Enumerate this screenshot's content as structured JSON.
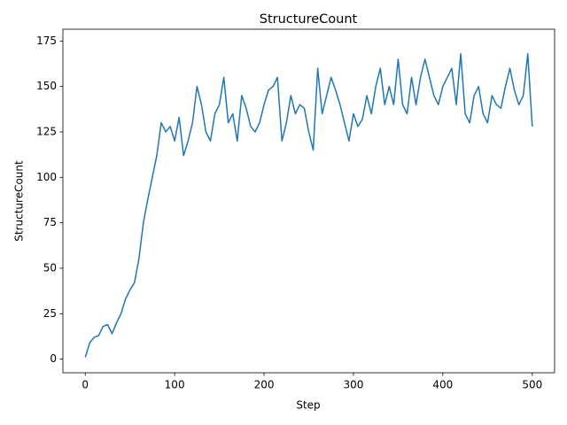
{
  "chart_data": {
    "type": "line",
    "title": "StructureCount",
    "xlabel": "Step",
    "ylabel": "StructureCount",
    "x": [
      0,
      5,
      10,
      15,
      20,
      25,
      30,
      35,
      40,
      45,
      50,
      55,
      60,
      65,
      70,
      75,
      80,
      85,
      90,
      95,
      100,
      105,
      110,
      115,
      120,
      125,
      130,
      135,
      140,
      145,
      150,
      155,
      160,
      165,
      170,
      175,
      180,
      185,
      190,
      195,
      200,
      205,
      210,
      215,
      220,
      225,
      230,
      235,
      240,
      245,
      250,
      255,
      260,
      265,
      270,
      275,
      280,
      285,
      290,
      295,
      300,
      305,
      310,
      315,
      320,
      325,
      330,
      335,
      340,
      345,
      350,
      355,
      360,
      365,
      370,
      375,
      380,
      385,
      390,
      395,
      400,
      405,
      410,
      415,
      420,
      425,
      430,
      435,
      440,
      445,
      450,
      455,
      460,
      465,
      470,
      475,
      480,
      485,
      490,
      495,
      500
    ],
    "series": [
      {
        "name": "StructureCount",
        "color": "#1f77b4",
        "values": [
          1,
          9,
          12,
          13,
          18,
          19,
          14,
          20,
          25,
          33,
          38,
          42,
          55,
          75,
          88,
          100,
          112,
          130,
          125,
          128,
          120,
          133,
          112,
          120,
          130,
          150,
          140,
          125,
          120,
          135,
          140,
          155,
          130,
          135,
          120,
          145,
          138,
          128,
          125,
          130,
          140,
          148,
          150,
          155,
          120,
          130,
          145,
          135,
          140,
          138,
          125,
          115,
          160,
          135,
          145,
          155,
          148,
          140,
          130,
          120,
          135,
          128,
          132,
          145,
          135,
          150,
          160,
          140,
          150,
          140,
          165,
          140,
          135,
          155,
          140,
          155,
          165,
          155,
          145,
          140,
          150,
          155,
          160,
          140,
          168,
          135,
          130,
          145,
          150,
          135,
          130,
          145,
          140,
          138,
          150,
          160,
          148,
          140,
          145,
          168,
          128
        ]
      }
    ],
    "xlim": [
      -25,
      525
    ],
    "ylim": [
      -7.5,
      181.5
    ],
    "xticks": [
      0,
      100,
      200,
      300,
      400,
      500
    ],
    "yticks": [
      0,
      25,
      50,
      75,
      100,
      125,
      150,
      175
    ],
    "grid": false
  }
}
